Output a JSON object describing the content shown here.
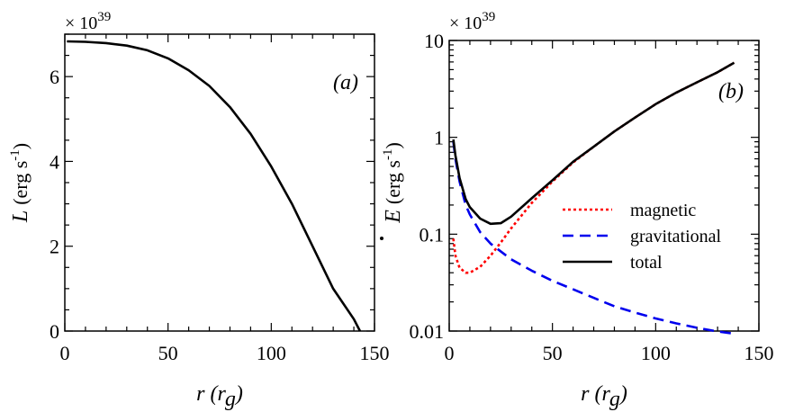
{
  "chart_data": [
    {
      "id": "a",
      "type": "line",
      "panel_label": "(a)",
      "xlabel": "r (r_g)",
      "xlabel_main": "r",
      "xlabel_unit_open": " (",
      "xlabel_unit_var": "r",
      "xlabel_unit_sub": "g",
      "xlabel_unit_close": ")",
      "ylabel_var": "L",
      "ylabel_unit": "(erg s",
      "ylabel_unit_sup": "-1",
      "ylabel_unit_close": ")",
      "multiplier_base": "× 10",
      "multiplier_exp": "39",
      "xlim": [
        0,
        150
      ],
      "ylim": [
        0,
        7
      ],
      "yscale": "linear",
      "xticks": [
        0,
        50,
        100,
        150
      ],
      "xtick_labels": [
        "0",
        "50",
        "100",
        "150"
      ],
      "yticks": [
        0,
        2,
        4,
        6
      ],
      "ytick_labels": [
        "0",
        "2",
        "4",
        "6"
      ],
      "series": [
        {
          "color": "#000000",
          "dash": "solid",
          "x": [
            1,
            10,
            20,
            30,
            40,
            50,
            60,
            70,
            80,
            90,
            100,
            110,
            120,
            130,
            140,
            143
          ],
          "y": [
            6.83,
            6.82,
            6.79,
            6.73,
            6.62,
            6.43,
            6.15,
            5.78,
            5.28,
            4.65,
            3.88,
            3.0,
            2.0,
            1.0,
            0.28,
            0.0
          ]
        }
      ]
    },
    {
      "id": "b",
      "type": "line",
      "panel_label": "(b)",
      "xlabel_main": "r",
      "xlabel_unit_open": " (",
      "xlabel_unit_var": "r",
      "xlabel_unit_sub": "g",
      "xlabel_unit_close": ")",
      "ylabel_var": "E",
      "ylabel_unit": "(erg s",
      "ylabel_unit_sup": "-1",
      "ylabel_unit_close": ")",
      "multiplier_base": "× 10",
      "multiplier_exp": "39",
      "xlim": [
        0,
        150
      ],
      "ylim": [
        0.01,
        10
      ],
      "yscale": "log",
      "xticks": [
        0,
        50,
        100,
        150
      ],
      "xtick_labels": [
        "0",
        "50",
        "100",
        "150"
      ],
      "yticks": [
        0.01,
        0.1,
        1,
        10
      ],
      "ytick_labels": [
        "0.01",
        "0.1",
        "1",
        "10"
      ],
      "legend_position": "center-right",
      "series": [
        {
          "name": "magnetic",
          "color": "#ff0000",
          "dash": "dotted",
          "x": [
            2,
            3,
            5,
            8,
            10,
            15,
            20,
            25,
            30,
            40,
            50,
            60,
            70,
            80,
            90,
            100,
            110,
            120,
            130,
            138
          ],
          "y": [
            0.09,
            0.06,
            0.045,
            0.04,
            0.04,
            0.046,
            0.06,
            0.082,
            0.115,
            0.21,
            0.35,
            0.55,
            0.8,
            1.15,
            1.6,
            2.2,
            2.9,
            3.7,
            4.7,
            5.9
          ]
        },
        {
          "name": "gravitational",
          "color": "#0000ee",
          "dash": "dashed",
          "x": [
            2,
            3,
            5,
            8,
            10,
            15,
            20,
            30,
            40,
            50,
            60,
            70,
            80,
            90,
            100,
            110,
            120,
            130,
            138
          ],
          "y": [
            0.9,
            0.6,
            0.35,
            0.2,
            0.16,
            0.105,
            0.08,
            0.055,
            0.042,
            0.033,
            0.027,
            0.022,
            0.018,
            0.0155,
            0.0135,
            0.012,
            0.0108,
            0.0099,
            0.0094
          ]
        },
        {
          "name": "total",
          "color": "#000000",
          "dash": "solid",
          "x": [
            2,
            3,
            5,
            8,
            10,
            15,
            20,
            25,
            30,
            40,
            50,
            60,
            70,
            80,
            90,
            100,
            110,
            120,
            130,
            138
          ],
          "y": [
            0.95,
            0.65,
            0.38,
            0.23,
            0.19,
            0.145,
            0.128,
            0.13,
            0.152,
            0.235,
            0.36,
            0.56,
            0.8,
            1.15,
            1.6,
            2.2,
            2.9,
            3.7,
            4.7,
            5.9
          ]
        }
      ]
    }
  ]
}
